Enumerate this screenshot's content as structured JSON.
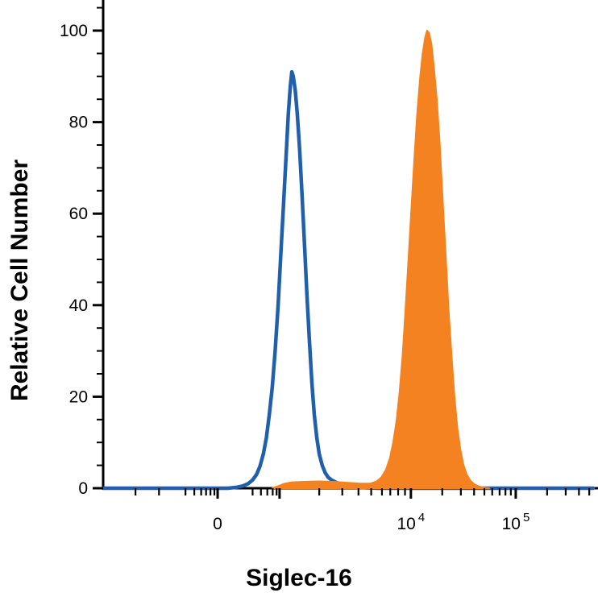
{
  "chart_data": {
    "type": "area",
    "subtype": "flow-cytometry-histogram-overlay",
    "title": "",
    "xlabel": "Siglec-16",
    "ylabel": "Relative Cell Number",
    "x_scale": "biexponential-log",
    "ylim": [
      0,
      100
    ],
    "y_major_ticks": [
      0,
      20,
      40,
      60,
      80,
      100
    ],
    "y_minor_ticks": [
      5,
      10,
      15,
      25,
      30,
      35,
      45,
      50,
      55,
      65,
      70,
      75,
      85,
      90,
      95,
      105
    ],
    "x_tick_labels": [
      {
        "pos": 0.2336,
        "label": "0"
      },
      {
        "pos": 0.628,
        "label": "10^4"
      },
      {
        "pos": 0.842,
        "label": "10^5"
      }
    ],
    "x_major_ticks": [
      0.2336,
      0.36,
      0.628,
      0.842
    ],
    "x_minor_ticks": [
      0.066,
      0.114,
      0.168,
      0.186,
      0.2,
      0.21,
      0.219,
      0.227,
      0.305,
      0.322,
      0.335,
      0.346,
      0.354,
      0.441,
      0.488,
      0.521,
      0.547,
      0.569,
      0.586,
      0.602,
      0.616,
      0.692,
      0.73,
      0.757,
      0.778,
      0.794,
      0.809,
      0.821,
      0.832,
      0.906,
      0.944,
      0.971,
      0.992
    ],
    "colors": {
      "axis": "#000000",
      "blue_line": "#1F5FAB",
      "orange_fill": "#F58220"
    },
    "series": [
      {
        "name": "blue-open-histogram",
        "style": "line",
        "color": "#1F5FAB",
        "peak_y": 91,
        "peak_x_norm": 0.385,
        "points": [
          [
            0,
            0
          ],
          [
            0.255,
            0
          ],
          [
            0.272,
            0.2
          ],
          [
            0.285,
            0.5
          ],
          [
            0.296,
            1
          ],
          [
            0.305,
            1.8
          ],
          [
            0.313,
            3
          ],
          [
            0.32,
            4.8
          ],
          [
            0.327,
            7.5
          ],
          [
            0.333,
            11
          ],
          [
            0.339,
            16
          ],
          [
            0.345,
            22
          ],
          [
            0.351,
            30
          ],
          [
            0.357,
            40
          ],
          [
            0.363,
            52
          ],
          [
            0.369,
            64
          ],
          [
            0.374,
            74
          ],
          [
            0.378,
            82
          ],
          [
            0.382,
            88
          ],
          [
            0.385,
            91
          ],
          [
            0.388,
            90
          ],
          [
            0.392,
            87
          ],
          [
            0.396,
            82
          ],
          [
            0.401,
            74
          ],
          [
            0.406,
            64
          ],
          [
            0.411,
            53
          ],
          [
            0.416,
            42
          ],
          [
            0.421,
            32
          ],
          [
            0.426,
            23
          ],
          [
            0.431,
            16
          ],
          [
            0.436,
            11
          ],
          [
            0.441,
            7.5
          ],
          [
            0.447,
            5
          ],
          [
            0.453,
            3.4
          ],
          [
            0.459,
            2.4
          ],
          [
            0.466,
            1.8
          ],
          [
            0.473,
            1.4
          ],
          [
            0.481,
            1.0
          ],
          [
            0.489,
            0.7
          ],
          [
            0.5,
            0.4
          ],
          [
            0.515,
            0.2
          ],
          [
            0.535,
            0.1
          ],
          [
            0.56,
            0
          ],
          [
            1,
            0
          ]
        ]
      },
      {
        "name": "orange-filled-histogram",
        "style": "filled",
        "color": "#F58220",
        "peak_y": 100,
        "peak_x_norm": 0.661,
        "points": [
          [
            0.345,
            0
          ],
          [
            0.358,
            0.5
          ],
          [
            0.37,
            1
          ],
          [
            0.385,
            1.3
          ],
          [
            0.41,
            1.4
          ],
          [
            0.44,
            1.5
          ],
          [
            0.47,
            1.4
          ],
          [
            0.5,
            1.2
          ],
          [
            0.525,
            1.0
          ],
          [
            0.545,
            1.0
          ],
          [
            0.558,
            1.5
          ],
          [
            0.568,
            2.4
          ],
          [
            0.577,
            4
          ],
          [
            0.585,
            6.5
          ],
          [
            0.592,
            10
          ],
          [
            0.599,
            15
          ],
          [
            0.605,
            21
          ],
          [
            0.611,
            29
          ],
          [
            0.617,
            39
          ],
          [
            0.623,
            50
          ],
          [
            0.629,
            61
          ],
          [
            0.635,
            72
          ],
          [
            0.641,
            82
          ],
          [
            0.647,
            90
          ],
          [
            0.652,
            95
          ],
          [
            0.657,
            98.5
          ],
          [
            0.661,
            100
          ],
          [
            0.665,
            99.5
          ],
          [
            0.67,
            97
          ],
          [
            0.675,
            92
          ],
          [
            0.681,
            85
          ],
          [
            0.687,
            75
          ],
          [
            0.693,
            63
          ],
          [
            0.699,
            51
          ],
          [
            0.705,
            39
          ],
          [
            0.711,
            29
          ],
          [
            0.717,
            20
          ],
          [
            0.723,
            13
          ],
          [
            0.729,
            8.5
          ],
          [
            0.735,
            5.2
          ],
          [
            0.742,
            3
          ],
          [
            0.749,
            1.7
          ],
          [
            0.757,
            0.9
          ],
          [
            0.766,
            0.4
          ],
          [
            0.776,
            0.15
          ],
          [
            0.788,
            0
          ]
        ]
      }
    ]
  }
}
